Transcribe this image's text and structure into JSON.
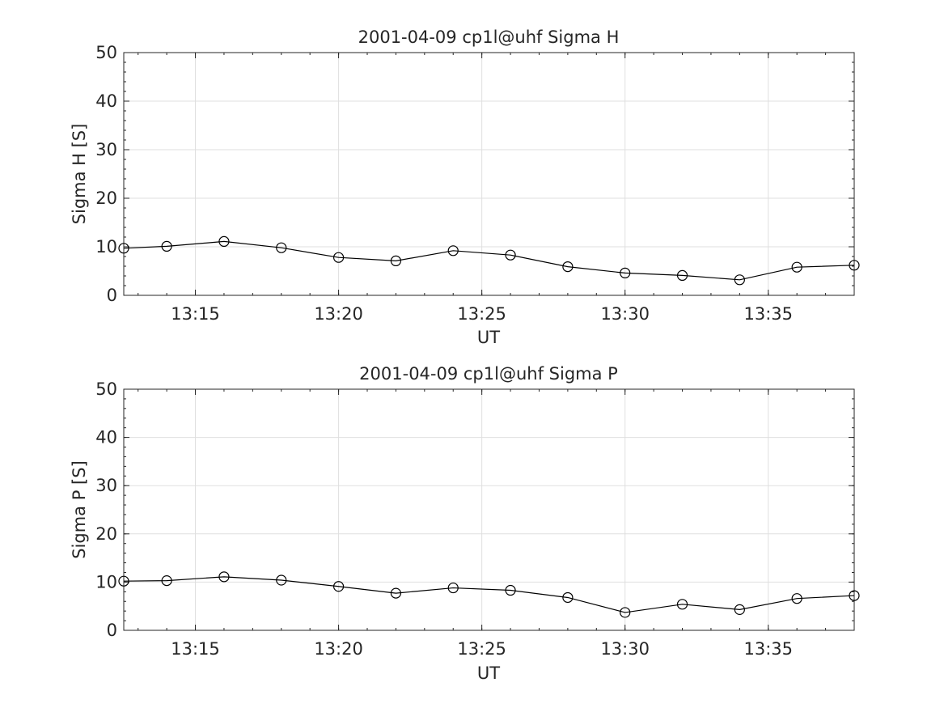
{
  "chart_data": [
    {
      "type": "line",
      "title": "2001-04-09  cp1l@uhf Sigma H",
      "xlabel": "UT",
      "ylabel": "Sigma H [S]",
      "xlim": [
        "13:12:30",
        "13:38:00"
      ],
      "ylim": [
        0,
        50
      ],
      "grid": true,
      "xticks": [
        "13:15",
        "13:20",
        "13:25",
        "13:30",
        "13:35"
      ],
      "yticks": [
        0,
        10,
        20,
        30,
        40,
        50
      ],
      "series": [
        {
          "x": [
            "13:12:30",
            "13:14",
            "13:16",
            "13:18",
            "13:20",
            "13:22",
            "13:24",
            "13:26",
            "13:28",
            "13:30",
            "13:32",
            "13:34",
            "13:36",
            "13:38"
          ],
          "values": [
            9.7,
            10.1,
            11.1,
            9.8,
            7.8,
            7.1,
            9.2,
            8.3,
            5.9,
            4.6,
            4.1,
            3.2,
            5.8,
            6.2
          ]
        }
      ],
      "colors": {
        "line": "#000000",
        "grid": "#dfdfdf",
        "axis": "#262626"
      }
    },
    {
      "type": "line",
      "title": "2001-04-09  cp1l@uhf Sigma P",
      "xlabel": "UT",
      "ylabel": "Sigma P [S]",
      "xlim": [
        "13:12:30",
        "13:38:00"
      ],
      "ylim": [
        0,
        50
      ],
      "grid": true,
      "xticks": [
        "13:15",
        "13:20",
        "13:25",
        "13:30",
        "13:35"
      ],
      "yticks": [
        0,
        10,
        20,
        30,
        40,
        50
      ],
      "series": [
        {
          "x": [
            "13:12:30",
            "13:14",
            "13:16",
            "13:18",
            "13:20",
            "13:22",
            "13:24",
            "13:26",
            "13:28",
            "13:30",
            "13:32",
            "13:34",
            "13:36",
            "13:38"
          ],
          "values": [
            10.2,
            10.3,
            11.1,
            10.4,
            9.1,
            7.7,
            8.8,
            8.3,
            6.8,
            3.7,
            5.4,
            4.3,
            6.6,
            7.2
          ]
        }
      ],
      "colors": {
        "line": "#000000",
        "grid": "#dfdfdf",
        "axis": "#262626"
      }
    }
  ]
}
